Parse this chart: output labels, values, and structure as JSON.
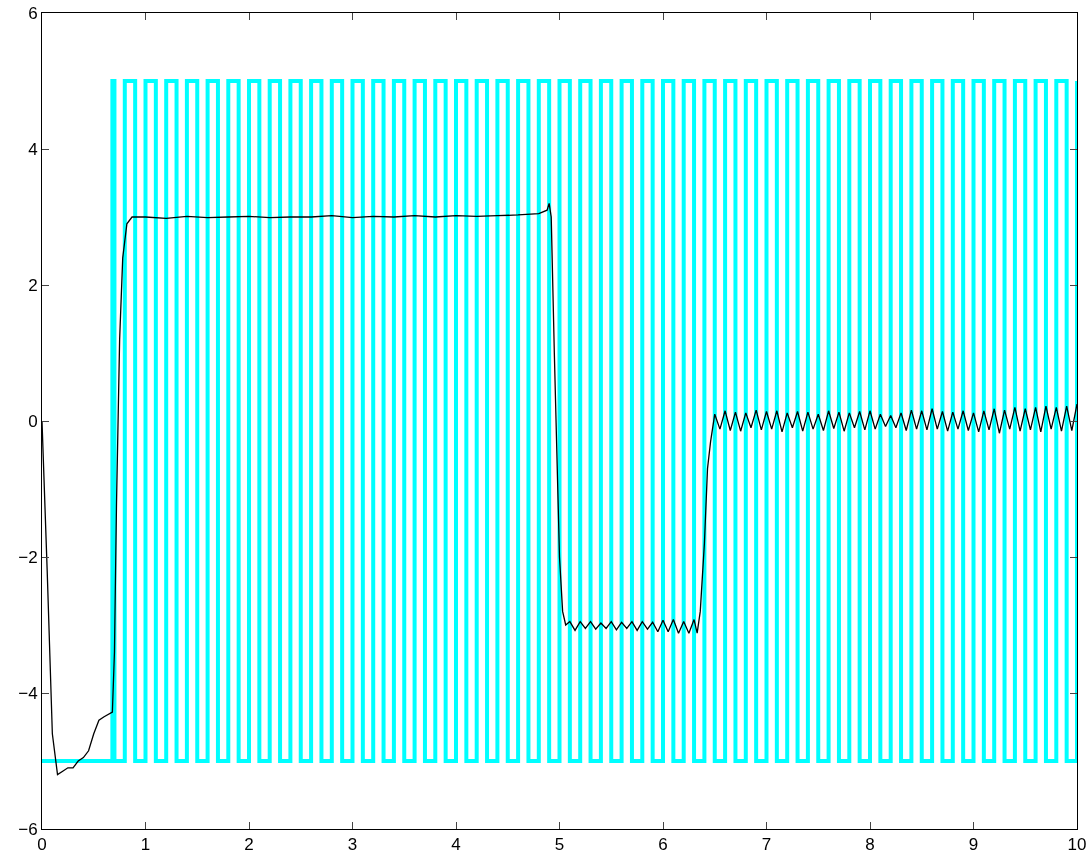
{
  "chart_data": {
    "type": "line",
    "xlim": [
      0,
      10
    ],
    "ylim": [
      -6,
      6
    ],
    "xticks": [
      0,
      1,
      2,
      3,
      4,
      5,
      6,
      7,
      8,
      9,
      10
    ],
    "yticks": [
      -6,
      -4,
      -2,
      0,
      2,
      4,
      6
    ],
    "grid": false,
    "marker": "none",
    "series": [
      {
        "type": "step",
        "color": "#00ffff",
        "x": [
          0,
          0.68,
          0.7,
          0.8,
          0.9,
          1,
          1.1,
          1.2,
          1.3,
          1.4,
          1.5,
          1.6,
          1.7,
          1.8,
          1.9,
          2,
          2.1,
          2.2,
          2.3,
          2.4,
          2.5,
          2.6,
          2.7,
          2.8,
          2.9,
          3,
          3.1,
          3.2,
          3.3,
          3.4,
          3.5,
          3.6,
          3.7,
          3.8,
          3.9,
          4,
          4.1,
          4.2,
          4.3,
          4.4,
          4.5,
          4.6,
          4.7,
          4.8,
          4.9,
          5,
          5.1,
          5.2,
          5.3,
          5.4,
          5.5,
          5.6,
          5.7,
          5.8,
          5.9,
          6,
          6.1,
          6.2,
          6.3,
          6.4,
          6.5,
          6.6,
          6.7,
          6.8,
          6.9,
          7,
          7.1,
          7.2,
          7.3,
          7.4,
          7.5,
          7.6,
          7.7,
          7.8,
          7.9,
          8,
          8.1,
          8.2,
          8.3,
          8.4,
          8.5,
          8.6,
          8.7,
          8.8,
          8.9,
          9,
          9.1,
          9.2,
          9.3,
          9.4,
          9.5,
          9.6,
          9.7,
          9.8,
          9.9,
          10
        ],
        "values": [
          -5,
          5,
          -5,
          5,
          -5,
          5,
          -5,
          5,
          -5,
          5,
          -5,
          5,
          -5,
          5,
          -5,
          5,
          -5,
          5,
          -5,
          5,
          -5,
          5,
          -5,
          5,
          -5,
          5,
          -5,
          5,
          -5,
          5,
          -5,
          5,
          -5,
          5,
          -5,
          5,
          -5,
          5,
          -5,
          5,
          -5,
          5,
          -5,
          5,
          -5,
          5,
          -5,
          5,
          -5,
          5,
          -5,
          5,
          -5,
          5,
          -5,
          5,
          -5,
          5,
          -5,
          5,
          -5,
          5,
          -5,
          5,
          -5,
          5,
          -5,
          5,
          -5,
          5,
          -5,
          5,
          -5,
          5,
          -5,
          5,
          -5,
          5,
          -5,
          5,
          -5,
          5,
          -5,
          5,
          -5,
          5,
          -5,
          5,
          -5,
          5,
          -5,
          5,
          -5,
          5,
          -5,
          5
        ]
      },
      {
        "type": "line",
        "color": "#000000",
        "x": [
          0,
          0.05,
          0.1,
          0.15,
          0.2,
          0.25,
          0.3,
          0.35,
          0.4,
          0.45,
          0.5,
          0.55,
          0.6,
          0.68,
          0.7,
          0.72,
          0.75,
          0.78,
          0.82,
          0.87,
          1,
          1.2,
          1.4,
          1.6,
          1.8,
          2,
          2.2,
          2.4,
          2.6,
          2.8,
          3,
          3.2,
          3.4,
          3.6,
          3.8,
          4,
          4.2,
          4.4,
          4.6,
          4.8,
          4.88,
          4.9,
          4.92,
          4.95,
          5,
          5.03,
          5.06,
          5.1,
          5.15,
          5.2,
          5.25,
          5.3,
          5.35,
          5.4,
          5.45,
          5.5,
          5.55,
          5.6,
          5.65,
          5.7,
          5.75,
          5.8,
          5.85,
          5.9,
          5.95,
          6,
          6.05,
          6.1,
          6.15,
          6.2,
          6.25,
          6.3,
          6.33,
          6.36,
          6.4,
          6.43,
          6.46,
          6.5,
          6.55,
          6.6,
          6.65,
          6.7,
          6.75,
          6.8,
          6.85,
          6.9,
          6.95,
          7,
          7.05,
          7.1,
          7.15,
          7.2,
          7.25,
          7.3,
          7.35,
          7.4,
          7.45,
          7.5,
          7.55,
          7.6,
          7.65,
          7.7,
          7.75,
          7.8,
          7.85,
          7.9,
          7.95,
          8,
          8.05,
          8.1,
          8.15,
          8.2,
          8.25,
          8.3,
          8.35,
          8.4,
          8.45,
          8.5,
          8.55,
          8.6,
          8.65,
          8.7,
          8.75,
          8.8,
          8.85,
          8.9,
          8.95,
          9,
          9.05,
          9.1,
          9.15,
          9.2,
          9.25,
          9.3,
          9.35,
          9.4,
          9.45,
          9.5,
          9.55,
          9.6,
          9.65,
          9.7,
          9.75,
          9.8,
          9.85,
          9.9,
          9.95,
          10
        ],
        "values": [
          0,
          -2.2,
          -4.6,
          -5.2,
          -5.15,
          -5.1,
          -5.1,
          -5,
          -4.95,
          -4.85,
          -4.6,
          -4.4,
          -4.35,
          -4.28,
          -3.4,
          -1.2,
          1.2,
          2.4,
          2.9,
          3,
          3,
          2.98,
          3.01,
          2.99,
          3,
          3.01,
          2.99,
          3,
          3,
          3.02,
          2.99,
          3.01,
          3,
          3.02,
          3,
          3.02,
          3.01,
          3.02,
          3.03,
          3.05,
          3.1,
          3.2,
          3,
          1,
          -2,
          -2.8,
          -3,
          -2.95,
          -3.08,
          -2.95,
          -3.05,
          -2.95,
          -3.06,
          -2.97,
          -3.05,
          -2.95,
          -3.07,
          -2.96,
          -3.05,
          -2.95,
          -3.08,
          -2.95,
          -3.06,
          -2.96,
          -3.1,
          -2.93,
          -3.1,
          -2.92,
          -3.12,
          -2.95,
          -3.12,
          -2.92,
          -3.12,
          -2.8,
          -1.8,
          -0.7,
          -0.3,
          0.1,
          -0.12,
          0.15,
          -0.14,
          0.13,
          -0.15,
          0.12,
          -0.1,
          0.16,
          -0.13,
          0.14,
          -0.12,
          0.15,
          -0.16,
          0.12,
          -0.1,
          0.14,
          -0.15,
          0.13,
          -0.12,
          0.1,
          -0.14,
          0.15,
          -0.11,
          0.13,
          -0.15,
          0.12,
          -0.1,
          0.14,
          -0.13,
          0.15,
          -0.12,
          0.1,
          -0.08,
          0.08,
          -0.1,
          0.12,
          -0.14,
          0.16,
          -0.12,
          0.15,
          -0.13,
          0.18,
          -0.12,
          0.14,
          -0.15,
          0.13,
          -0.12,
          0.15,
          -0.14,
          0.12,
          -0.16,
          0.15,
          -0.13,
          0.18,
          -0.18,
          0.16,
          -0.12,
          0.2,
          -0.15,
          0.18,
          -0.13,
          0.2,
          -0.16,
          0.22,
          -0.12,
          0.2,
          -0.15,
          0.22,
          -0.14,
          0.25
        ]
      }
    ]
  }
}
